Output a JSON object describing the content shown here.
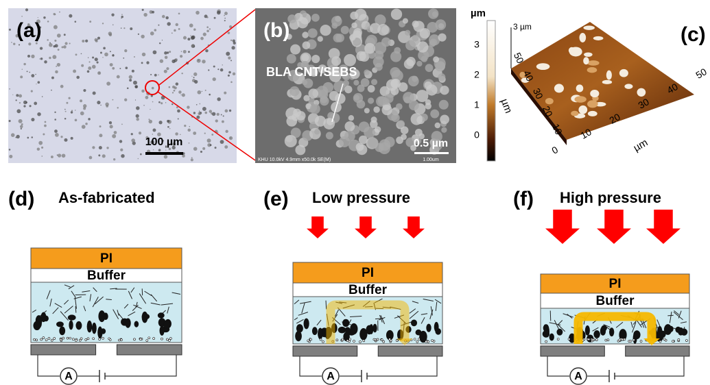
{
  "panels": [
    {
      "label": "(a)",
      "scale_bar": "100 µm"
    },
    {
      "label": "(b)",
      "annotation": "BLA CNT/SEBS",
      "scale_bar": "0.5 µm",
      "footer": "KHU 10.0kV 4.9mm x50.0k SE(M)",
      "footer_scale": "1.00um"
    },
    {
      "label": "(c)",
      "colorbar_unit": "µm",
      "colorbar_ticks": [
        3,
        2,
        1,
        0
      ],
      "z_label": "3 µm",
      "y_axis_label": "µm",
      "y_ticks": [
        50,
        40,
        30,
        20,
        10
      ],
      "x_axis_label": "µm",
      "x_ticks": [
        0,
        10,
        20,
        30,
        40,
        50
      ]
    },
    {
      "label": "(d)",
      "title": "As-fabricated",
      "top_layer": "PI",
      "buffer_layer": "Buffer",
      "meter": "A"
    },
    {
      "label": "(e)",
      "title": "Low pressure",
      "top_layer": "PI",
      "buffer_layer": "Buffer",
      "meter": "A"
    },
    {
      "label": "(f)",
      "title": "High pressure",
      "top_layer": "PI",
      "buffer_layer": "Buffer",
      "meter": "A"
    }
  ]
}
